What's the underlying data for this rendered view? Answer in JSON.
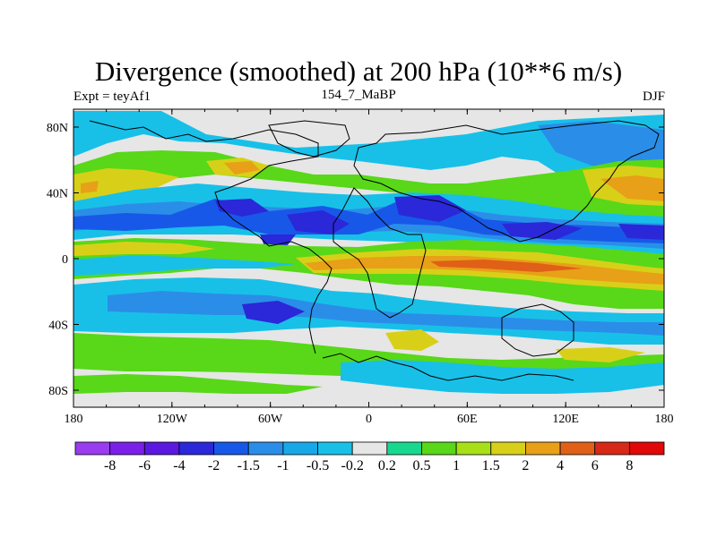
{
  "chart_data": {
    "type": "heatmap",
    "title": "Divergence (smoothed) at 200 hPa (10**6 m/s)",
    "subtitle_left": "Expt = teyAf1",
    "subtitle_center": "154_7_MaBP",
    "subtitle_right": "DJF",
    "x_ticks": [
      "180",
      "120W",
      "60W",
      "0",
      "60E",
      "120E",
      "180"
    ],
    "y_ticks": [
      "80N",
      "40N",
      "0",
      "40S",
      "80S"
    ],
    "colorbar_levels": [
      "-8",
      "-6",
      "-4",
      "-2",
      "-1.5",
      "-1",
      "-0.5",
      "-0.2",
      "0.2",
      "0.5",
      "1",
      "1.5",
      "2",
      "4",
      "6",
      "8"
    ],
    "colorbar_colors": [
      "#9a3cf0",
      "#7a20e8",
      "#5a18e0",
      "#2a28d8",
      "#1858e8",
      "#2a8ee8",
      "#18a8e8",
      "#18c0e8",
      "#e6e6e6",
      "#18d890",
      "#58d818",
      "#a8e018",
      "#d8d018",
      "#e8a018",
      "#e06018",
      "#d82818",
      "#e00808"
    ]
  }
}
